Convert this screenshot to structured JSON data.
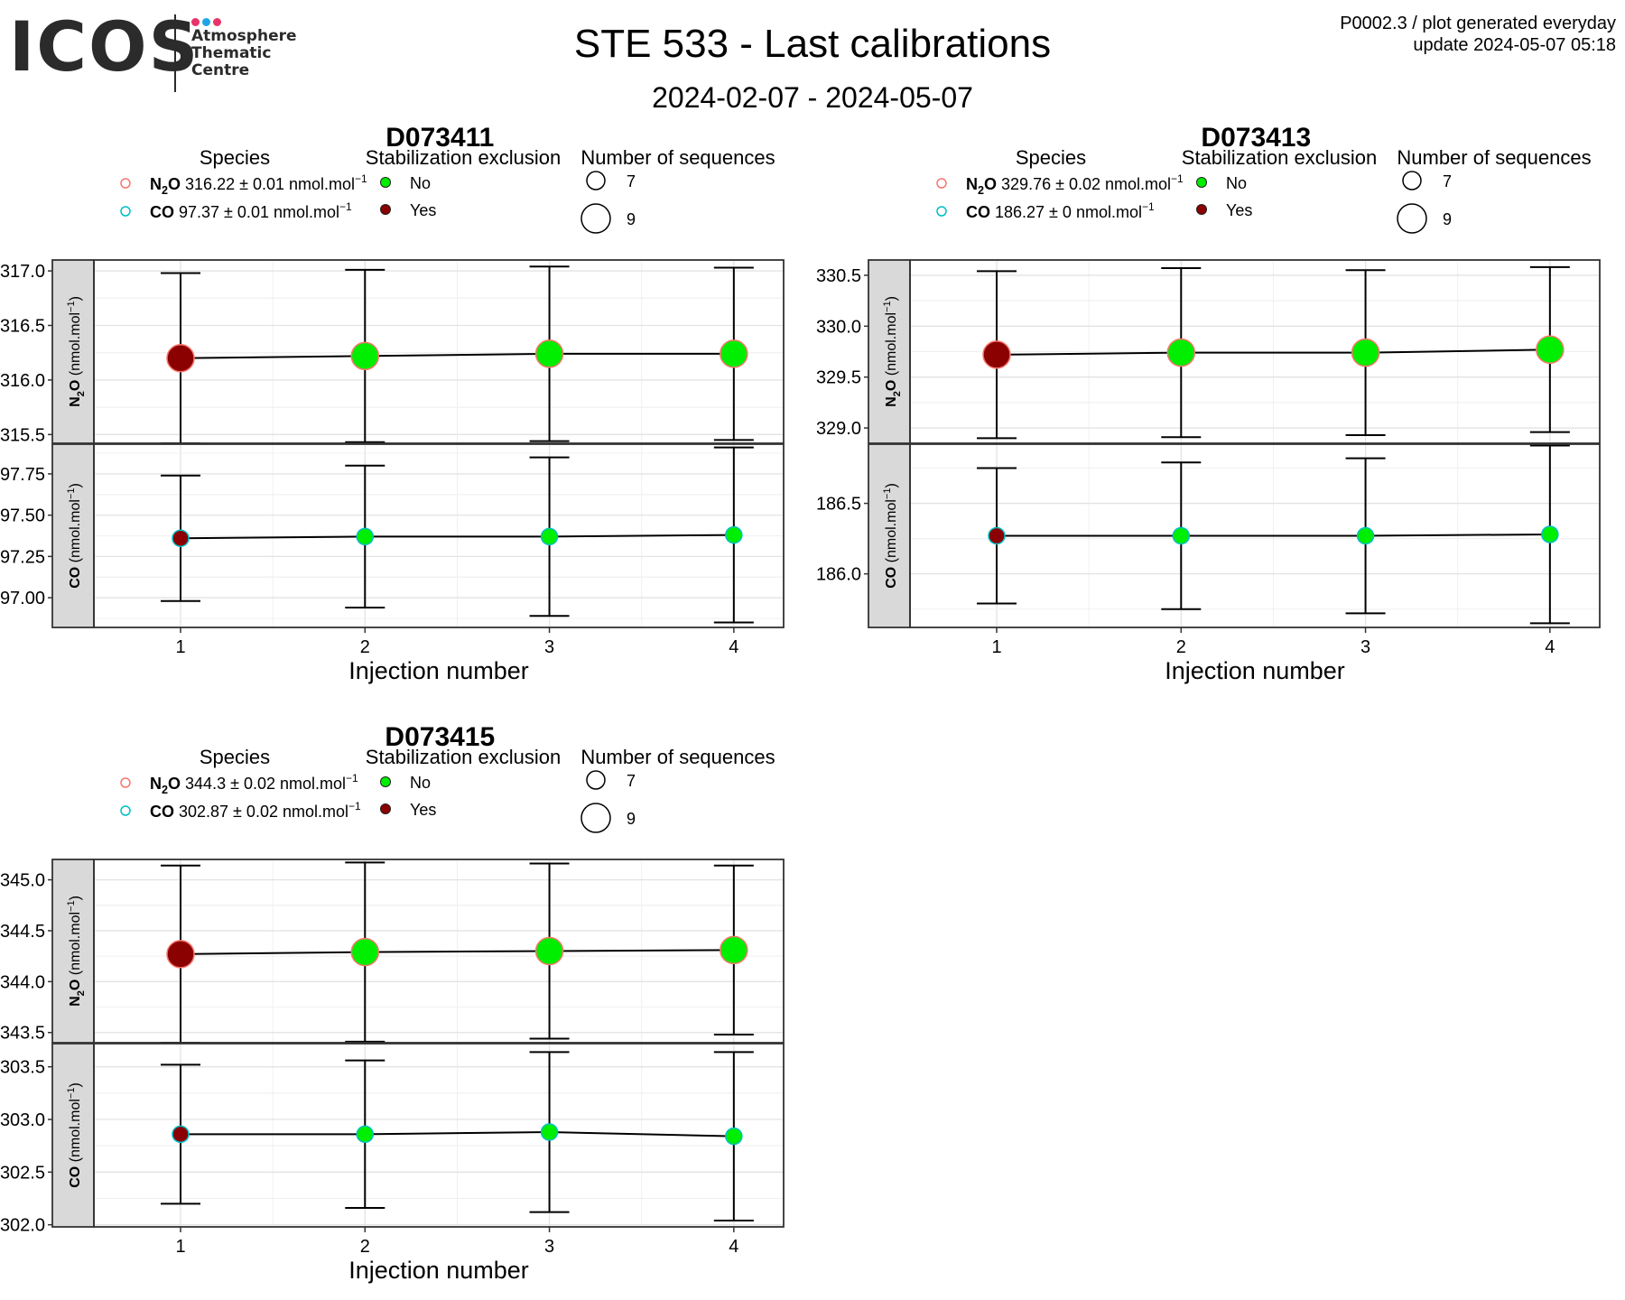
{
  "header": {
    "logo_text": "ICOS",
    "logo_lines": [
      "Atmosphere",
      "Thematic",
      "Centre"
    ],
    "title": "STE 533 - Last calibrations",
    "date_range": "2024-02-07 - 2024-05-07",
    "program_note": "P0002.3 / plot generated everyday",
    "update_note": "update  2024-05-07 05:18"
  },
  "colors": {
    "logo_dots": [
      "#e8336b",
      "#20a4e8",
      "#e8336b"
    ],
    "excluded_no": "#00ee00",
    "excluded_yes": "#8b0000",
    "n2o_outline": "#f8766d",
    "co_outline": "#00bfc4",
    "strip_fill": "#d9d9d9"
  },
  "legend_titles": {
    "species": "Species",
    "stabilization": "Stabilization exclusion",
    "sequences": "Number of sequences"
  },
  "stabilization_levels": [
    "No",
    "Yes"
  ],
  "sequence_levels": [
    "7",
    "9"
  ],
  "x_axis_title": "Injection number",
  "chart_data": [
    {
      "type": "scatter",
      "title": "D073411",
      "x": [
        1,
        2,
        3,
        4
      ],
      "excluded": [
        "Yes",
        "No",
        "No",
        "No"
      ],
      "n_sequences": 9,
      "legend": [
        {
          "species": "N2O",
          "summary": "316.22 ± 0.01 nmol.mol",
          "unit_exp": "−1"
        },
        {
          "species": "CO",
          "summary": "97.37 ± 0.01 nmol.mol",
          "unit_exp": "−1"
        }
      ],
      "panels": [
        {
          "species": "N2O",
          "strip": "N2O (nmol.mol-1)",
          "ylim": [
            315.42,
            317.1
          ],
          "ticks": [
            "315.5",
            "316.0",
            "316.5",
            "317.0"
          ],
          "y": [
            316.2,
            316.22,
            316.24,
            316.24
          ],
          "err": [
            0.78,
            0.79,
            0.8,
            0.79
          ]
        },
        {
          "species": "CO",
          "strip": "CO (nmol.mol-1)",
          "ylim": [
            96.82,
            97.93
          ],
          "ticks": [
            "97.00",
            "97.25",
            "97.50",
            "97.75"
          ],
          "y": [
            97.36,
            97.37,
            97.37,
            97.38
          ],
          "err": [
            0.38,
            0.43,
            0.48,
            0.53
          ]
        }
      ]
    },
    {
      "type": "scatter",
      "title": "D073413",
      "x": [
        1,
        2,
        3,
        4
      ],
      "excluded": [
        "Yes",
        "No",
        "No",
        "No"
      ],
      "n_sequences": 9,
      "legend": [
        {
          "species": "N2O",
          "summary": "329.76 ± 0.02 nmol.mol",
          "unit_exp": "−1"
        },
        {
          "species": "CO",
          "summary": "186.27 ± 0 nmol.mol",
          "unit_exp": "−1"
        }
      ],
      "panels": [
        {
          "species": "N2O",
          "strip": "N2O (nmol.mol-1)",
          "ylim": [
            328.85,
            330.65
          ],
          "ticks": [
            "329.0",
            "329.5",
            "330.0",
            "330.5"
          ],
          "y": [
            329.72,
            329.74,
            329.74,
            329.77
          ],
          "err": [
            0.82,
            0.83,
            0.81,
            0.81
          ]
        },
        {
          "species": "CO",
          "strip": "CO (nmol.mol-1)",
          "ylim": [
            185.62,
            186.92
          ],
          "ticks": [
            "186.0",
            "186.5"
          ],
          "y": [
            186.27,
            186.27,
            186.27,
            186.28
          ],
          "err": [
            0.48,
            0.52,
            0.55,
            0.63
          ]
        }
      ]
    },
    {
      "type": "scatter",
      "title": "D073415",
      "x": [
        1,
        2,
        3,
        4
      ],
      "excluded": [
        "Yes",
        "No",
        "No",
        "No"
      ],
      "n_sequences": 9,
      "legend": [
        {
          "species": "N2O",
          "summary": "344.3 ± 0.02 nmol.mol",
          "unit_exp": "−1"
        },
        {
          "species": "CO",
          "summary": "302.87 ± 0.02 nmol.mol",
          "unit_exp": "−1"
        }
      ],
      "panels": [
        {
          "species": "N2O",
          "strip": "N2O (nmol.mol-1)",
          "ylim": [
            343.4,
            345.2
          ],
          "ticks": [
            "343.5",
            "344.0",
            "344.5",
            "345.0"
          ],
          "y": [
            344.27,
            344.29,
            344.3,
            344.31
          ],
          "err": [
            0.87,
            0.88,
            0.86,
            0.83
          ]
        },
        {
          "species": "CO",
          "strip": "CO (nmol.mol-1)",
          "ylim": [
            301.98,
            303.72
          ],
          "ticks": [
            "302.0",
            "302.5",
            "303.0",
            "303.5"
          ],
          "y": [
            302.86,
            302.86,
            302.88,
            302.84
          ],
          "err": [
            0.66,
            0.7,
            0.76,
            0.8
          ]
        }
      ]
    }
  ]
}
